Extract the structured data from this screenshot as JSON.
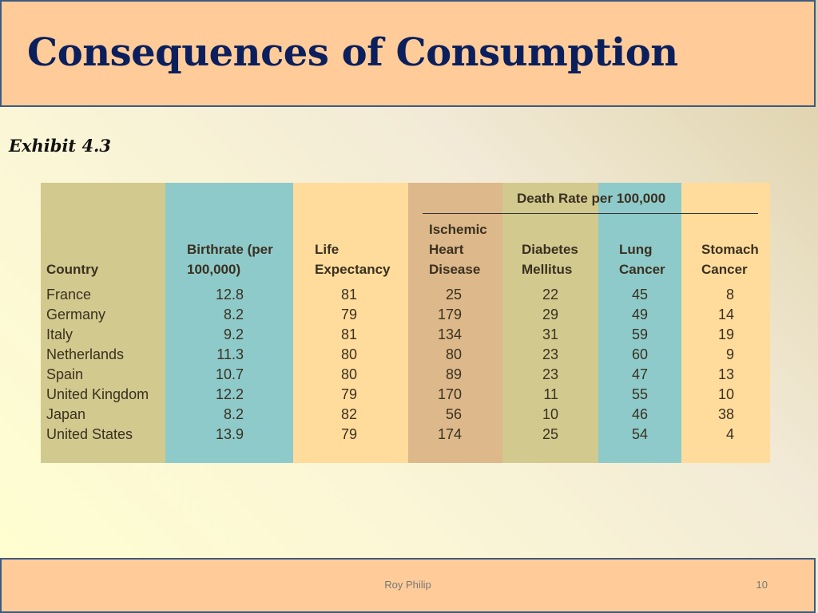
{
  "slide": {
    "title": "Consequences of Consumption",
    "subtitle": "Exhibit 4.3",
    "footer_author": "Roy Philip",
    "page_number": "10"
  },
  "colors": {
    "country_band": "#d2c98f",
    "birthrate_band": "#8ecaca",
    "life_band": "#ffdc9c",
    "heart_band": "#dcb88a",
    "diabetes_band": "#d2c98f",
    "lung_band": "#8ecaca",
    "stomach_band": "#ffdc9c"
  },
  "table": {
    "group_header": "Death Rate per 100,000",
    "headers": {
      "country": [
        "Country"
      ],
      "birthrate": [
        "Birthrate (per",
        "100,000)"
      ],
      "life": [
        "Life",
        "Expectancy"
      ],
      "heart": [
        "Ischemic",
        "Heart",
        "Disease"
      ],
      "diabetes": [
        "Diabetes",
        "Mellitus"
      ],
      "lung": [
        "Lung",
        "Cancer"
      ],
      "stomach": [
        "Stomach",
        "Cancer"
      ]
    },
    "rows": [
      {
        "country": "France",
        "birthrate": "12.8",
        "life": "81",
        "heart": "25",
        "diabetes": "22",
        "lung": "45",
        "stomach": "8"
      },
      {
        "country": "Germany",
        "birthrate": "8.2",
        "life": "79",
        "heart": "179",
        "diabetes": "29",
        "lung": "49",
        "stomach": "14"
      },
      {
        "country": "Italy",
        "birthrate": "9.2",
        "life": "81",
        "heart": "134",
        "diabetes": "31",
        "lung": "59",
        "stomach": "19"
      },
      {
        "country": "Netherlands",
        "birthrate": "11.3",
        "life": "80",
        "heart": "80",
        "diabetes": "23",
        "lung": "60",
        "stomach": "9"
      },
      {
        "country": "Spain",
        "birthrate": "10.7",
        "life": "80",
        "heart": "89",
        "diabetes": "23",
        "lung": "47",
        "stomach": "13"
      },
      {
        "country": "United Kingdom",
        "birthrate": "12.2",
        "life": "79",
        "heart": "170",
        "diabetes": "11",
        "lung": "55",
        "stomach": "10"
      },
      {
        "country": "Japan",
        "birthrate": "8.2",
        "life": "82",
        "heart": "56",
        "diabetes": "10",
        "lung": "46",
        "stomach": "38"
      },
      {
        "country": "United States",
        "birthrate": "13.9",
        "life": "79",
        "heart": "174",
        "diabetes": "25",
        "lung": "54",
        "stomach": "4"
      }
    ]
  }
}
